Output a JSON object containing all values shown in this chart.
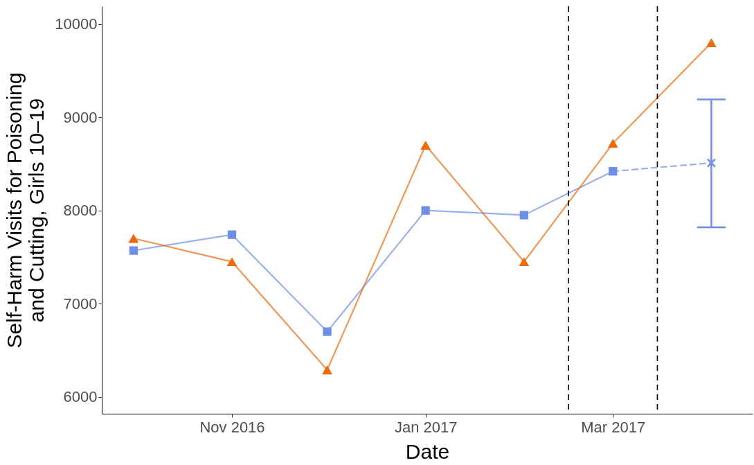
{
  "chart_data": {
    "type": "line",
    "xlabel": "Date",
    "ylabel": "Self-Harm Visits for Poisoning\nand Cutting, Girls 10–19",
    "series": [
      {
        "color": "#6d8fe6",
        "marker": "square",
        "line_style": "solid",
        "x": [
          "2016-10-01",
          "2016-11-01",
          "2016-12-01",
          "2017-01-01",
          "2017-02-01",
          "2017-03-01"
        ],
        "values": [
          7570,
          7740,
          6700,
          8000,
          7950,
          8420
        ]
      },
      {
        "color": "#6d8fe6",
        "marker": "cross",
        "line_style": "dashed",
        "x": [
          "2017-03-01",
          "2017-04-01"
        ],
        "values": [
          8420,
          8510
        ],
        "errors": [
          null,
          [
            7820,
            9190
          ]
        ]
      },
      {
        "color": "#ec6a0c",
        "marker": "triangle",
        "line_style": "solid",
        "x": [
          "2016-10-01",
          "2016-11-01",
          "2016-12-01",
          "2017-01-01",
          "2017-02-01",
          "2017-03-01",
          "2017-04-01"
        ],
        "values": [
          7700,
          7450,
          6290,
          8700,
          7450,
          8720,
          9800
        ]
      }
    ],
    "xlim": [
      "2016-09-21",
      "2017-04-14"
    ],
    "xticks": [
      {
        "value": "2016-11-01",
        "label": "Nov 2016"
      },
      {
        "value": "2017-01-01",
        "label": "Jan 2017"
      },
      {
        "value": "2017-03-01",
        "label": "Mar 2017"
      }
    ],
    "ylim": [
      5820,
      10190
    ],
    "yticks": [
      6000,
      7000,
      8000,
      9000,
      10000
    ],
    "ref_lines": [
      {
        "axis": "x",
        "value": "2017-02-15",
        "color": "#000000",
        "line_style": "dashed"
      },
      {
        "axis": "x",
        "value": "2017-03-15",
        "color": "#000000",
        "line_style": "dashed"
      }
    ],
    "grid": false,
    "legend": false
  }
}
